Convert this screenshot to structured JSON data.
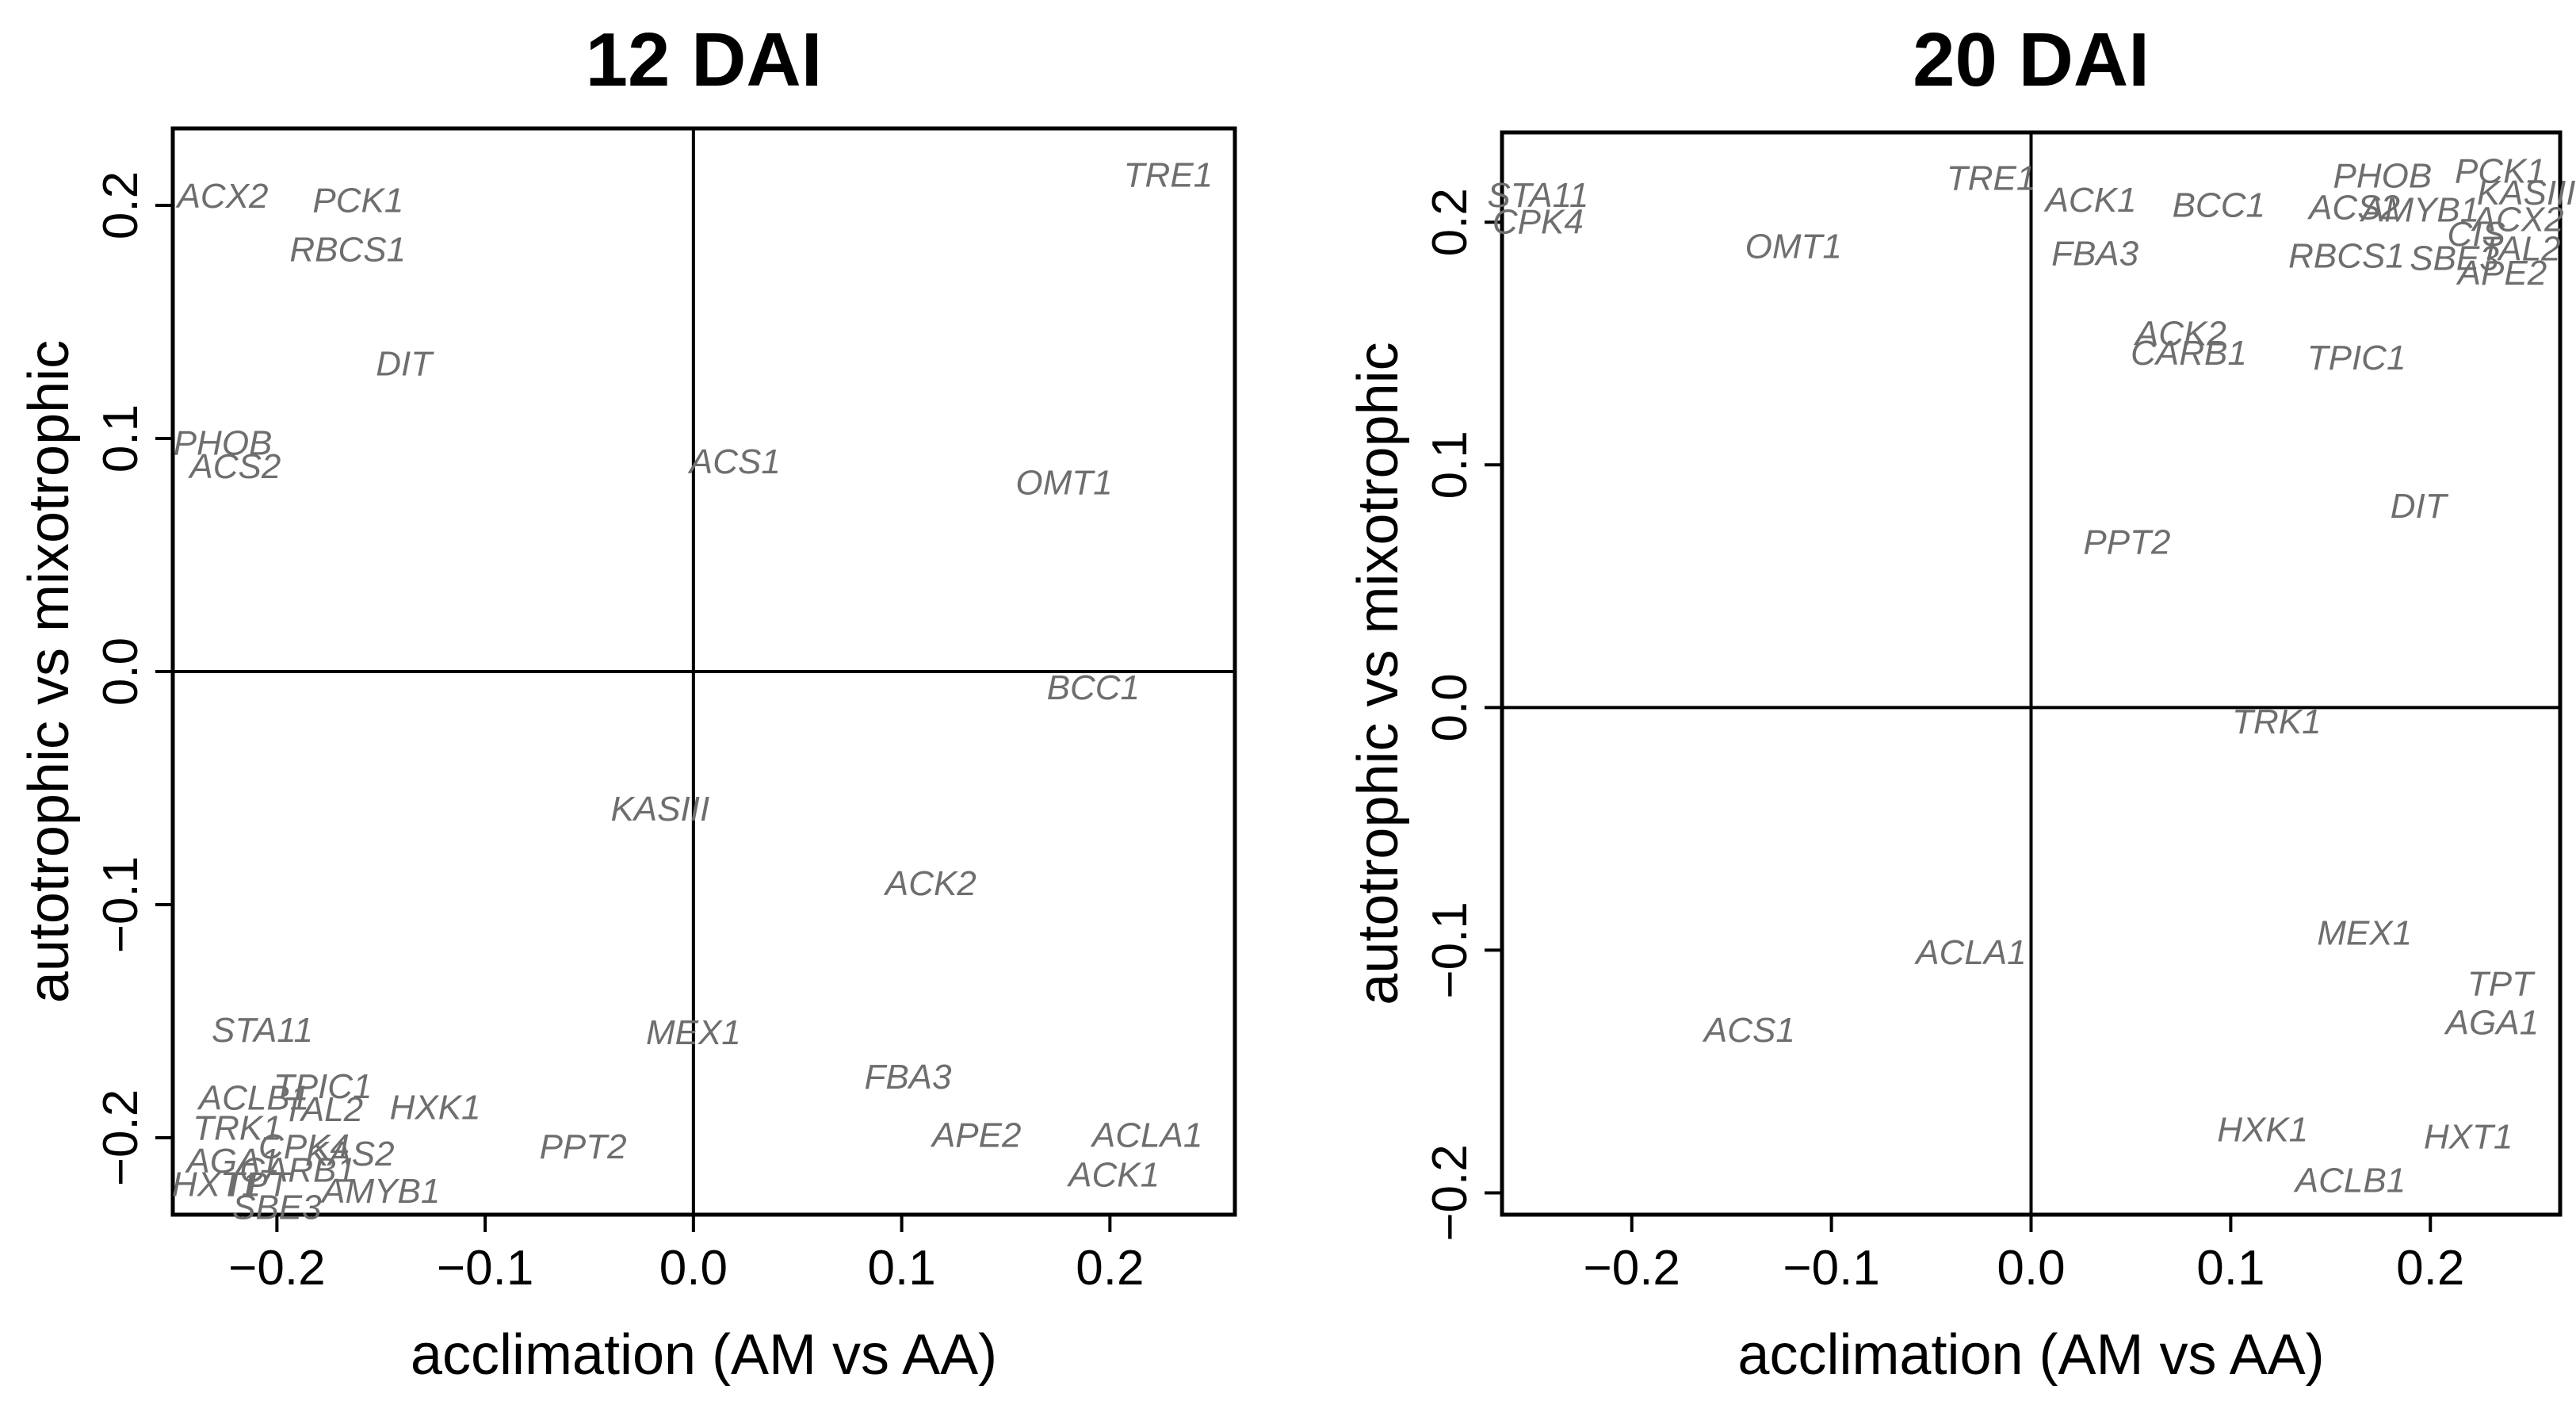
{
  "chart_data": [
    {
      "type": "scatter",
      "title": "12 DAI",
      "xlabel": "acclimation (AM vs AA)",
      "ylabel": "autotrophic  vs mixotrophic",
      "xlim": [
        -0.25,
        0.26
      ],
      "ylim": [
        -0.233,
        0.233
      ],
      "xticks": [
        -0.2,
        -0.1,
        0.0,
        0.1,
        0.2
      ],
      "xtick_labels": [
        "−0.2",
        "−0.1",
        "0.0",
        "0.1",
        "0.2"
      ],
      "yticks": [
        -0.2,
        -0.1,
        0.0,
        0.1,
        0.2
      ],
      "ytick_labels": [
        "−0.2",
        "−0.1",
        "0.0",
        "0.1",
        "0.2"
      ],
      "reference_lines": {
        "x": 0,
        "y": 0
      },
      "grid": false,
      "points": [
        {
          "label": "ACX2",
          "x": -0.226,
          "y": 0.204
        },
        {
          "label": "PCK1",
          "x": -0.161,
          "y": 0.202
        },
        {
          "label": "RBCS1",
          "x": -0.166,
          "y": 0.181
        },
        {
          "label": "DIT",
          "x": -0.139,
          "y": 0.132
        },
        {
          "label": "PHOB",
          "x": -0.226,
          "y": 0.098
        },
        {
          "label": "ACS2",
          "x": -0.22,
          "y": 0.088
        },
        {
          "label": "ACS1",
          "x": 0.02,
          "y": 0.09
        },
        {
          "label": "TRE1",
          "x": 0.228,
          "y": 0.213
        },
        {
          "label": "OMT1",
          "x": 0.178,
          "y": 0.081
        },
        {
          "label": "BCC1",
          "x": 0.192,
          "y": -0.007
        },
        {
          "label": "KASIII",
          "x": -0.016,
          "y": -0.059
        },
        {
          "label": "ACK2",
          "x": 0.114,
          "y": -0.091
        },
        {
          "label": "STA11",
          "x": -0.207,
          "y": -0.154
        },
        {
          "label": "MEX1",
          "x": 0.0,
          "y": -0.155
        },
        {
          "label": "FBA3",
          "x": 0.103,
          "y": -0.174
        },
        {
          "label": "APE2",
          "x": 0.136,
          "y": -0.199
        },
        {
          "label": "ACLA1",
          "x": 0.218,
          "y": -0.199
        },
        {
          "label": "ACK1",
          "x": 0.202,
          "y": -0.216
        },
        {
          "label": "PPT2",
          "x": -0.053,
          "y": -0.204
        },
        {
          "label": "HXK1",
          "x": -0.124,
          "y": -0.187
        },
        {
          "label": "TPIC1",
          "x": -0.178,
          "y": -0.178
        },
        {
          "label": "ACLB1",
          "x": -0.211,
          "y": -0.183
        },
        {
          "label": "TAL2",
          "x": -0.178,
          "y": -0.188
        },
        {
          "label": "TRK1",
          "x": -0.219,
          "y": -0.196
        },
        {
          "label": "CPK4",
          "x": -0.187,
          "y": -0.204
        },
        {
          "label": "KAS2",
          "x": -0.165,
          "y": -0.207
        },
        {
          "label": "AGA1",
          "x": -0.221,
          "y": -0.21
        },
        {
          "label": "CARB1",
          "x": -0.19,
          "y": -0.214
        },
        {
          "label": "HXT1",
          "x": -0.229,
          "y": -0.22
        },
        {
          "label": "TPT",
          "x": -0.21,
          "y": -0.22
        },
        {
          "label": "AMYB1",
          "x": -0.15,
          "y": -0.223
        },
        {
          "label": "SBE3",
          "x": -0.2,
          "y": -0.23
        }
      ]
    },
    {
      "type": "scatter",
      "title": "20 DAI",
      "xlabel": "acclimation (AM vs AA)",
      "ylabel": "autotrophic  vs mixotrophic",
      "xlim": [
        -0.265,
        0.265
      ],
      "ylim": [
        -0.209,
        0.237
      ],
      "xticks": [
        -0.2,
        -0.1,
        0.0,
        0.1,
        0.2
      ],
      "xtick_labels": [
        "−0.2",
        "−0.1",
        "0.0",
        "0.1",
        "0.2"
      ],
      "yticks": [
        -0.2,
        -0.1,
        0.0,
        0.1,
        0.2
      ],
      "ytick_labels": [
        "−0.2",
        "−0.1",
        "0.0",
        "0.1",
        "0.2"
      ],
      "reference_lines": {
        "x": 0,
        "y": 0
      },
      "grid": false,
      "points": [
        {
          "label": "STA11",
          "x": -0.247,
          "y": 0.211
        },
        {
          "label": "CPK4",
          "x": -0.247,
          "y": 0.2
        },
        {
          "label": "TRE1",
          "x": -0.02,
          "y": 0.218
        },
        {
          "label": "OMT1",
          "x": -0.119,
          "y": 0.19
        },
        {
          "label": "ACK1",
          "x": 0.03,
          "y": 0.209
        },
        {
          "label": "BCC1",
          "x": 0.094,
          "y": 0.207
        },
        {
          "label": "FBA3",
          "x": 0.032,
          "y": 0.187
        },
        {
          "label": "PHOB",
          "x": 0.176,
          "y": 0.219
        },
        {
          "label": "PCK1",
          "x": 0.235,
          "y": 0.221
        },
        {
          "label": "KASIII",
          "x": 0.248,
          "y": 0.212
        },
        {
          "label": "ACS2",
          "x": 0.162,
          "y": 0.206
        },
        {
          "label": "AMYB1",
          "x": 0.195,
          "y": 0.205
        },
        {
          "label": "ACX2",
          "x": 0.244,
          "y": 0.201
        },
        {
          "label": "CIS",
          "x": 0.223,
          "y": 0.195
        },
        {
          "label": "TAL2",
          "x": 0.245,
          "y": 0.189
        },
        {
          "label": "RBCS1",
          "x": 0.158,
          "y": 0.186
        },
        {
          "label": "SBE3",
          "x": 0.212,
          "y": 0.185
        },
        {
          "label": "APE2",
          "x": 0.236,
          "y": 0.179
        },
        {
          "label": "ACK2",
          "x": 0.075,
          "y": 0.154
        },
        {
          "label": "CARB1",
          "x": 0.079,
          "y": 0.146
        },
        {
          "label": "TPIC1",
          "x": 0.163,
          "y": 0.144
        },
        {
          "label": "DIT",
          "x": 0.194,
          "y": 0.083
        },
        {
          "label": "PPT2",
          "x": 0.048,
          "y": 0.068
        },
        {
          "label": "TRK1",
          "x": 0.123,
          "y": -0.006
        },
        {
          "label": "ACLA1",
          "x": -0.03,
          "y": -0.101
        },
        {
          "label": "ACS1",
          "x": -0.141,
          "y": -0.133
        },
        {
          "label": "MEX1",
          "x": 0.167,
          "y": -0.093
        },
        {
          "label": "TPT",
          "x": 0.235,
          "y": -0.114
        },
        {
          "label": "AGA1",
          "x": 0.231,
          "y": -0.13
        },
        {
          "label": "HXK1",
          "x": 0.116,
          "y": -0.174
        },
        {
          "label": "HXT1",
          "x": 0.219,
          "y": -0.177
        },
        {
          "label": "ACLB1",
          "x": 0.16,
          "y": -0.195
        }
      ]
    }
  ]
}
